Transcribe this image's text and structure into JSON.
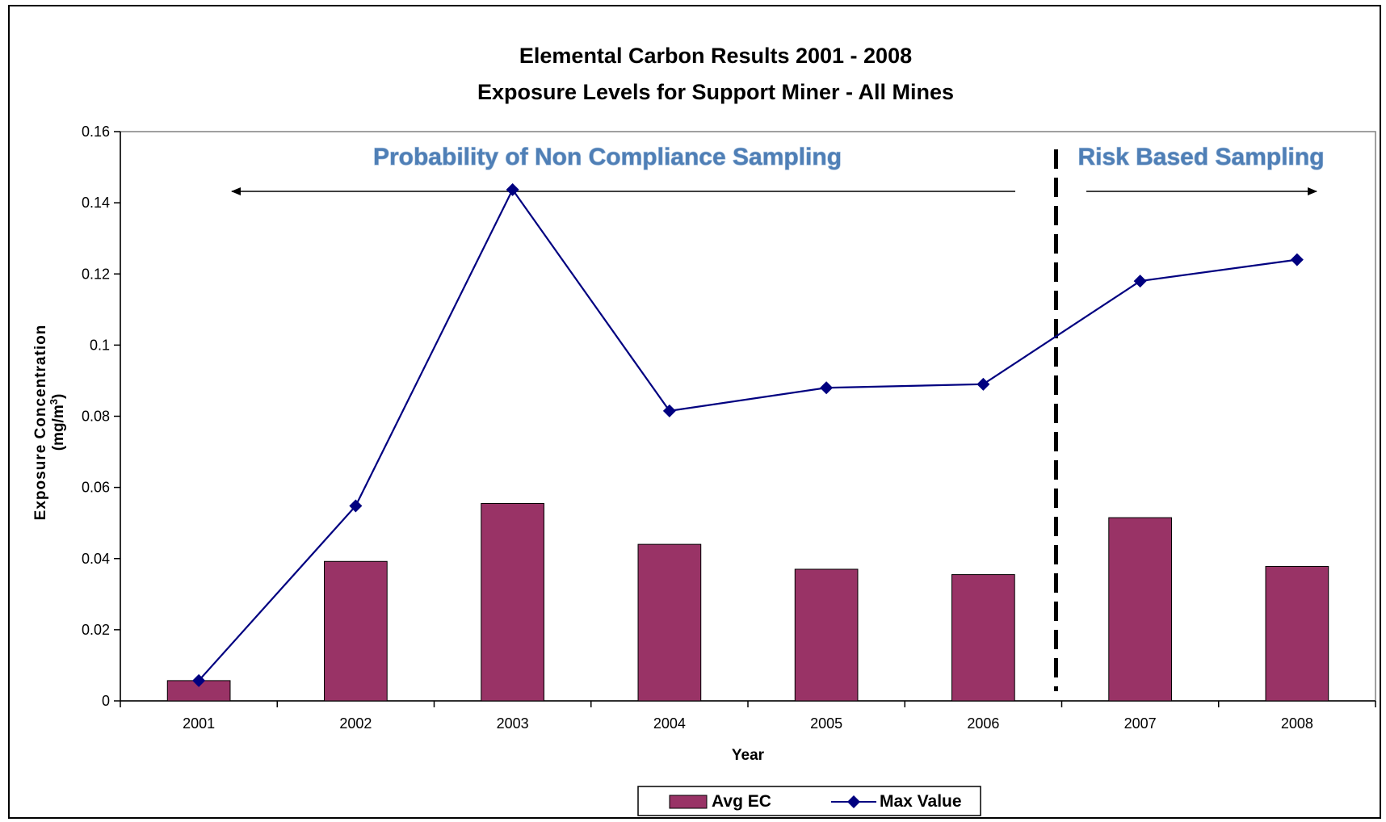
{
  "chart_data": {
    "type": "bar",
    "title": "Elemental Carbon Results 2001 - 2008",
    "subtitle": "Exposure Levels for Support Miner - All Mines",
    "xlabel": "Year",
    "ylabel_line1": "Exposure Concentration",
    "ylabel_line2": "(mg/m",
    "ylabel_sup": "3",
    "ylabel_close": ")",
    "categories": [
      "2001",
      "2002",
      "2003",
      "2004",
      "2005",
      "2006",
      "2007",
      "2008"
    ],
    "ylim": [
      0,
      0.16
    ],
    "yticks": [
      0,
      0.02,
      0.04,
      0.06,
      0.08,
      0.1,
      0.12,
      0.14,
      0.16
    ],
    "ytick_labels": [
      "0",
      "0.02",
      "0.04",
      "0.06",
      "0.08",
      "0.1",
      "0.12",
      "0.14",
      "0.16"
    ],
    "grid": false,
    "legend_position": "bottom",
    "series": [
      {
        "name": "Avg EC",
        "type": "bar",
        "color": "#993366",
        "values": [
          0.0057,
          0.0392,
          0.0555,
          0.044,
          0.037,
          0.0355,
          0.0515,
          0.0378
        ]
      },
      {
        "name": "Max Value",
        "type": "line",
        "color": "#000080",
        "marker": "diamond",
        "values": [
          0.0057,
          0.0548,
          0.1437,
          0.0815,
          0.088,
          0.089,
          0.118,
          0.124
        ]
      }
    ],
    "annotations": [
      {
        "text": "Probability of Non Compliance Sampling",
        "arrow": "left"
      },
      {
        "text": "Risk Based Sampling",
        "arrow": "right"
      }
    ],
    "divider": {
      "between": [
        "2006",
        "2007"
      ],
      "style": "dashed"
    }
  }
}
